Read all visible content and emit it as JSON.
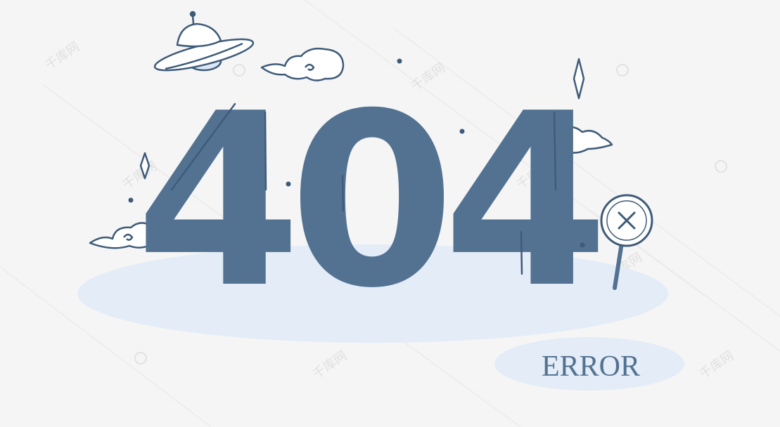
{
  "illustration": {
    "code": "404",
    "label": "ERROR",
    "watermark_text": "千库网"
  },
  "icons": {
    "saucer": "ufo-icon",
    "clouds": "cloud-icon",
    "sparkles": "sparkle-icon",
    "magnifier": "magnifier-x-icon"
  },
  "colors": {
    "background": "#f5f5f5",
    "primary": "#537292",
    "light_blue": "#e3ecf7",
    "outline": "#3e5b79"
  }
}
